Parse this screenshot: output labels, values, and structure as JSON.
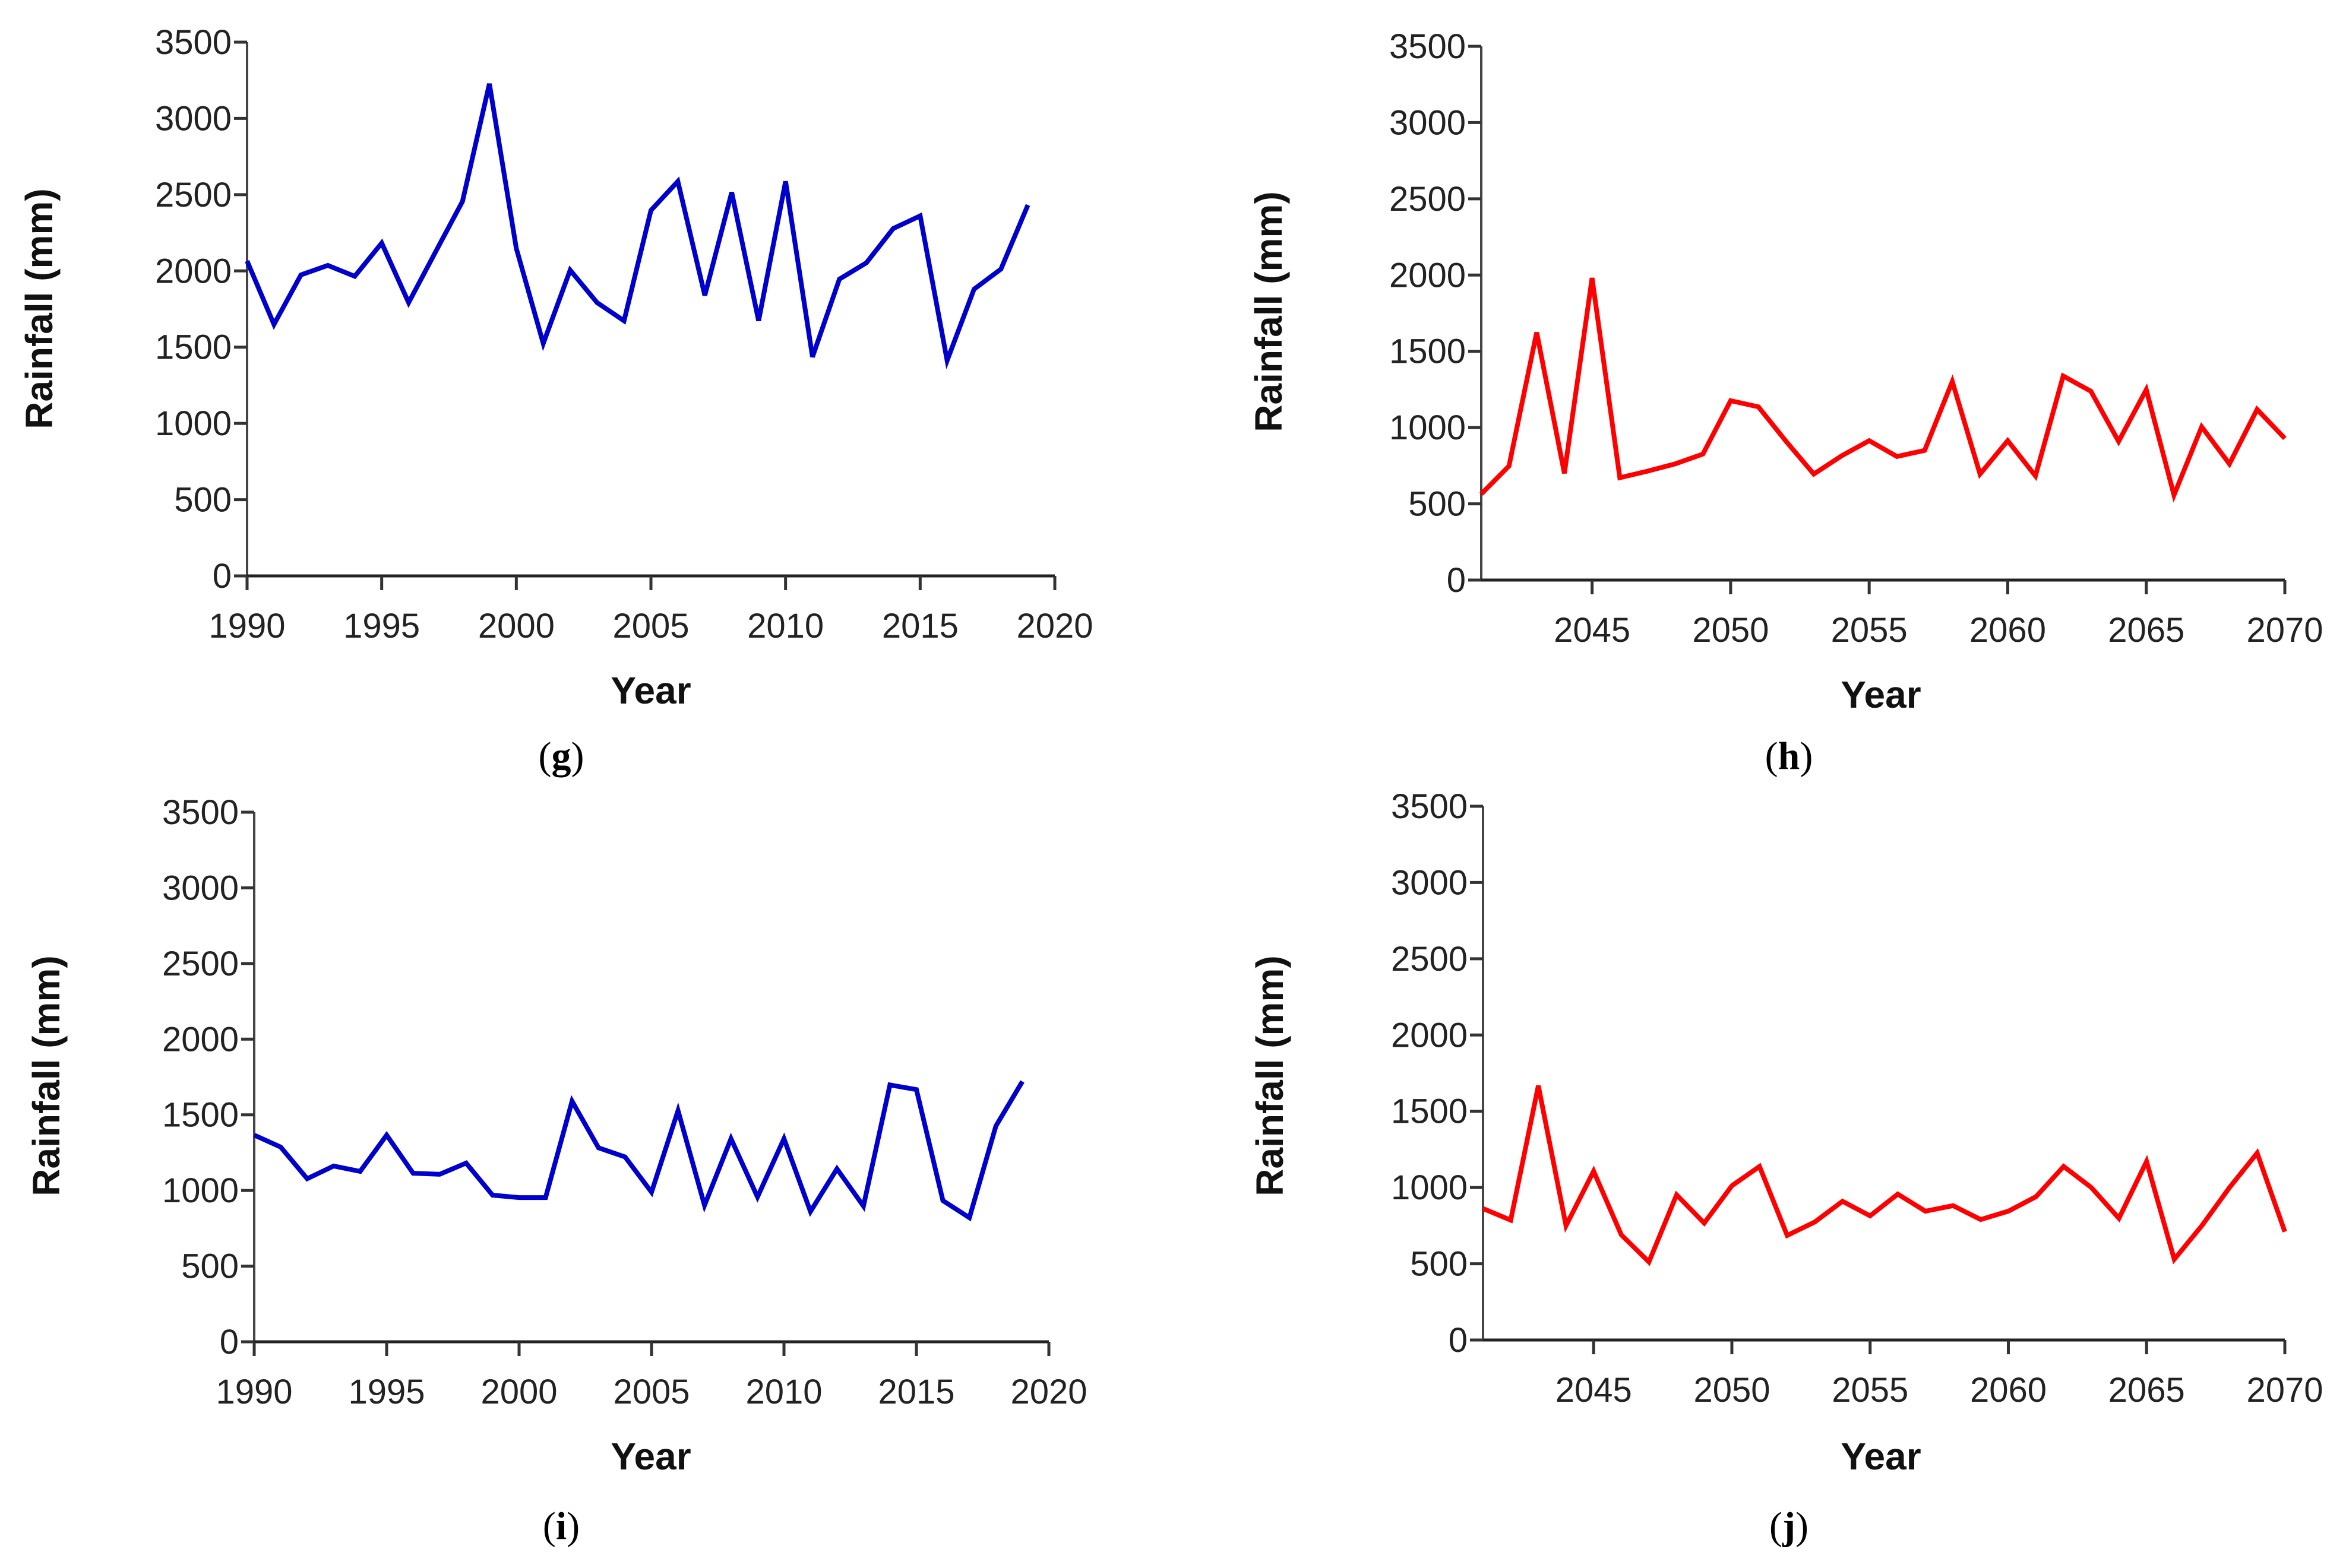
{
  "chart_data": [
    {
      "type": "line",
      "panel": "g",
      "xlabel": "Year",
      "ylabel": "Rainfall (mm)",
      "xlim": [
        1990,
        2020
      ],
      "ylim": [
        0,
        3500
      ],
      "xticks": [
        1990,
        1995,
        2000,
        2005,
        2010,
        2015,
        2020
      ],
      "yticks": [
        0,
        500,
        1000,
        1500,
        2000,
        2500,
        3000,
        3500
      ],
      "grid": false,
      "color": "#0000cc",
      "x": [
        1990,
        1991,
        1992,
        1993,
        1994,
        1995,
        1996,
        1997,
        1998,
        1999,
        2000,
        2001,
        2002,
        2003,
        2004,
        2005,
        2006,
        2007,
        2008,
        2009,
        2010,
        2011,
        2012,
        2013,
        2014,
        2015,
        2016,
        2017,
        2018,
        2019
      ],
      "y": [
        2065,
        1649,
        1974,
        2036,
        1965,
        2183,
        1792,
        2124,
        2456,
        3227,
        2148,
        1524,
        2005,
        1792,
        1673,
        2397,
        2587,
        1839,
        2515,
        1673,
        2587,
        1436,
        1946,
        2053,
        2278,
        2361,
        1412,
        1880,
        2012,
        2432
      ]
    },
    {
      "type": "line",
      "panel": "h",
      "xlabel": "Year",
      "ylabel": "Rainfall (mm)",
      "xlim": [
        2041,
        2070
      ],
      "ylim": [
        0,
        3500
      ],
      "xticks": [
        2045,
        2050,
        2055,
        2060,
        2065,
        2070
      ],
      "yticks": [
        0,
        500,
        1000,
        1500,
        2000,
        2500,
        3000,
        3500
      ],
      "grid": false,
      "color": "#ff0000",
      "x": [
        2041,
        2042,
        2043,
        2044,
        2045,
        2046,
        2047,
        2048,
        2049,
        2050,
        2051,
        2052,
        2053,
        2054,
        2055,
        2056,
        2057,
        2058,
        2059,
        2060,
        2061,
        2062,
        2063,
        2064,
        2065,
        2066,
        2067,
        2068,
        2069,
        2070
      ],
      "y": [
        564,
        748,
        1624,
        700,
        1981,
        671,
        714,
        762,
        826,
        1176,
        1136,
        910,
        695,
        814,
        914,
        810,
        850,
        1302,
        695,
        914,
        683,
        1338,
        1238,
        909,
        1248,
        557,
        1005,
        762,
        1119,
        929
      ]
    },
    {
      "type": "line",
      "panel": "i",
      "xlabel": "Year",
      "ylabel": "Rainfall (mm)",
      "xlim": [
        1990,
        2020
      ],
      "ylim": [
        0,
        3500
      ],
      "xticks": [
        1990,
        1995,
        2000,
        2005,
        2010,
        2015,
        2020
      ],
      "yticks": [
        0,
        500,
        1000,
        1500,
        2000,
        2500,
        3000,
        3500
      ],
      "grid": false,
      "color": "#0000cc",
      "x": [
        1990,
        1991,
        1992,
        1993,
        1994,
        1995,
        1996,
        1997,
        1998,
        1999,
        2000,
        2001,
        2002,
        2003,
        2004,
        2005,
        2006,
        2007,
        2008,
        2009,
        2010,
        2011,
        2012,
        2013,
        2014,
        2015,
        2016,
        2017,
        2018,
        2019
      ],
      "y": [
        1366,
        1287,
        1078,
        1162,
        1126,
        1366,
        1114,
        1107,
        1181,
        969,
        953,
        953,
        1590,
        1282,
        1222,
        989,
        1528,
        902,
        1342,
        957,
        1342,
        861,
        1143,
        897,
        1698,
        1667,
        933,
        820,
        1426,
        1720
      ]
    },
    {
      "type": "line",
      "panel": "j",
      "xlabel": "Year",
      "ylabel": "Rainfall (mm)",
      "xlim": [
        2041,
        2070
      ],
      "ylim": [
        0,
        3500
      ],
      "xticks": [
        2045,
        2050,
        2055,
        2060,
        2065,
        2070
      ],
      "yticks": [
        0,
        500,
        1000,
        1500,
        2000,
        2500,
        3000,
        3500
      ],
      "grid": false,
      "color": "#ff0000",
      "x": [
        2041,
        2042,
        2043,
        2044,
        2045,
        2046,
        2047,
        2048,
        2049,
        2050,
        2051,
        2052,
        2053,
        2054,
        2055,
        2056,
        2057,
        2058,
        2059,
        2060,
        2061,
        2062,
        2063,
        2064,
        2065,
        2066,
        2067,
        2068,
        2069,
        2070
      ],
      "y": [
        862,
        786,
        1667,
        750,
        1107,
        690,
        512,
        952,
        767,
        1012,
        1138,
        686,
        774,
        910,
        814,
        957,
        845,
        881,
        790,
        845,
        940,
        1138,
        1000,
        798,
        1171,
        529,
        750,
        1000,
        1226,
        710
      ]
    }
  ]
}
